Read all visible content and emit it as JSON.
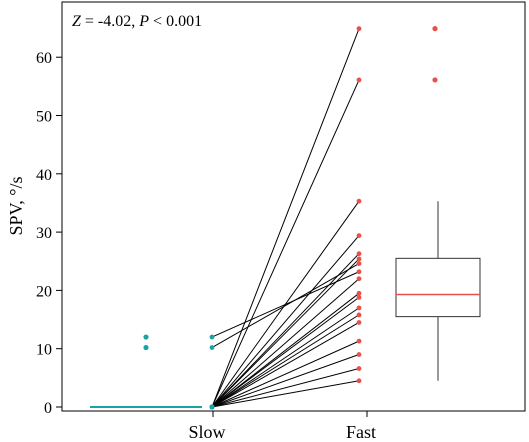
{
  "annotation": {
    "z_label": "Z",
    "z_value": " = -4.02, ",
    "p_label": "P",
    "p_value": " < 0.001"
  },
  "chart_data": {
    "type": "scatter",
    "title": "",
    "xlabel": "",
    "ylabel": "SPV, °/s",
    "categories": [
      "Slow",
      "Fast"
    ],
    "ylim": [
      0,
      65
    ],
    "yticks": [
      0,
      10,
      20,
      30,
      40,
      50,
      60
    ],
    "grid": false,
    "colors": {
      "slow": "#1aa3a3",
      "fast": "#e8514a",
      "pair_line": "#000000",
      "median_line": "#e8514a",
      "box": "#333333"
    },
    "pairs": [
      {
        "slow": 0,
        "fast": 64.9
      },
      {
        "slow": 0,
        "fast": 56.1
      },
      {
        "slow": 0,
        "fast": 35.3
      },
      {
        "slow": 0,
        "fast": 29.4
      },
      {
        "slow": 0,
        "fast": 26.3
      },
      {
        "slow": 0,
        "fast": 25.4
      },
      {
        "slow": 10.2,
        "fast": 24.6
      },
      {
        "slow": 12.0,
        "fast": 23.2
      },
      {
        "slow": 0,
        "fast": 22.0
      },
      {
        "slow": 0,
        "fast": 19.5
      },
      {
        "slow": 0,
        "fast": 18.8
      },
      {
        "slow": 0,
        "fast": 17.0
      },
      {
        "slow": 0,
        "fast": 15.8
      },
      {
        "slow": 0,
        "fast": 14.5
      },
      {
        "slow": 0,
        "fast": 11.3
      },
      {
        "slow": 0,
        "fast": 9.0
      },
      {
        "slow": 0,
        "fast": 6.6
      },
      {
        "slow": 0,
        "fast": 4.5
      }
    ],
    "slow_box": {
      "min": 0,
      "q1": 0,
      "median": 0,
      "q3": 0,
      "max": 0,
      "outliers": [
        12.0,
        10.2
      ]
    },
    "fast_box": {
      "min": 4.5,
      "q1": 15.5,
      "median": 19.3,
      "q3": 25.5,
      "max": 35.3,
      "outliers": [
        64.9,
        56.1
      ]
    }
  }
}
